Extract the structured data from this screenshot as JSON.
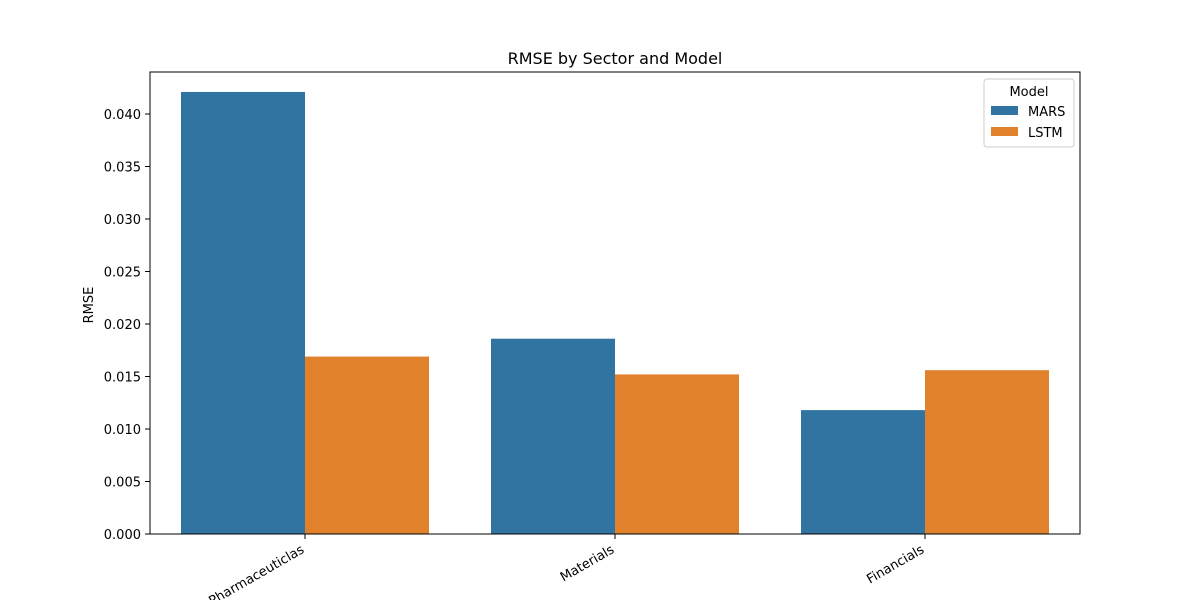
{
  "chart_data": {
    "type": "bar",
    "title": "RMSE by Sector and Model",
    "xlabel": "",
    "ylabel": "RMSE",
    "categories": [
      "Pharmaceuticlas",
      "Materials",
      "Financials"
    ],
    "series": [
      {
        "name": "MARS",
        "color": "#3274a1",
        "values": [
          0.0421,
          0.0186,
          0.0118
        ]
      },
      {
        "name": "LSTM",
        "color": "#e1812c",
        "values": [
          0.0169,
          0.0152,
          0.0156
        ]
      }
    ],
    "ylim": [
      0,
      0.044
    ],
    "yticks": [
      0.0,
      0.005,
      0.01,
      0.015,
      0.02,
      0.025,
      0.03,
      0.035,
      0.04
    ],
    "ytick_labels": [
      "0.000",
      "0.005",
      "0.010",
      "0.015",
      "0.020",
      "0.025",
      "0.030",
      "0.035",
      "0.040"
    ],
    "legend": {
      "title": "Model",
      "placement": "top-right"
    },
    "grid": false
  }
}
